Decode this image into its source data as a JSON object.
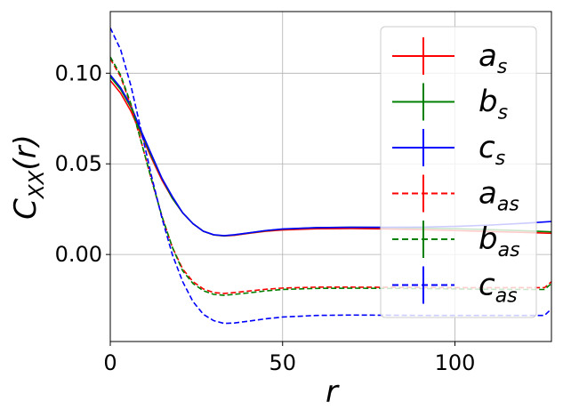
{
  "chart_data": {
    "type": "line",
    "xlabel": "r",
    "ylabel_main": "C",
    "ylabel_sub": "XX",
    "ylabel_tail": "(r)",
    "xlim": [
      0,
      128
    ],
    "ylim": [
      -0.048,
      0.134
    ],
    "xticks": [
      0,
      50,
      100
    ],
    "xtick_labels": [
      "0",
      "50",
      "100"
    ],
    "yticks": [
      0.1,
      0.05,
      0.0
    ],
    "ytick_labels": [
      "0.10",
      "0.05",
      "0.00"
    ],
    "grid": true,
    "legend_position": "top-right",
    "series": [
      {
        "name": "a",
        "sub": "s",
        "color": "#ff0000",
        "style": "solid",
        "points": [
          [
            0,
            0.096
          ],
          [
            3,
            0.089
          ],
          [
            6,
            0.079
          ],
          [
            9,
            0.066
          ],
          [
            12,
            0.053
          ],
          [
            15,
            0.041
          ],
          [
            18,
            0.031
          ],
          [
            21,
            0.023
          ],
          [
            24,
            0.017
          ],
          [
            27,
            0.0128
          ],
          [
            30,
            0.0108
          ],
          [
            33,
            0.0102
          ],
          [
            36,
            0.0106
          ],
          [
            40,
            0.0116
          ],
          [
            45,
            0.0128
          ],
          [
            50,
            0.0135
          ],
          [
            60,
            0.0142
          ],
          [
            70,
            0.0143
          ],
          [
            80,
            0.0141
          ],
          [
            90,
            0.0137
          ],
          [
            100,
            0.0132
          ],
          [
            110,
            0.0127
          ],
          [
            120,
            0.0122
          ],
          [
            128,
            0.0117
          ]
        ]
      },
      {
        "name": "b",
        "sub": "s",
        "color": "#008000",
        "style": "solid",
        "points": [
          [
            0,
            0.098
          ],
          [
            3,
            0.091
          ],
          [
            6,
            0.081
          ],
          [
            9,
            0.067
          ],
          [
            12,
            0.054
          ],
          [
            15,
            0.042
          ],
          [
            18,
            0.031
          ],
          [
            21,
            0.023
          ],
          [
            24,
            0.017
          ],
          [
            27,
            0.0128
          ],
          [
            30,
            0.0108
          ],
          [
            33,
            0.0103
          ],
          [
            36,
            0.0108
          ],
          [
            40,
            0.0118
          ],
          [
            45,
            0.0131
          ],
          [
            50,
            0.014
          ],
          [
            60,
            0.0148
          ],
          [
            70,
            0.015
          ],
          [
            80,
            0.0149
          ],
          [
            90,
            0.0146
          ],
          [
            100,
            0.0142
          ],
          [
            110,
            0.0137
          ],
          [
            120,
            0.0131
          ],
          [
            128,
            0.0125
          ]
        ]
      },
      {
        "name": "c",
        "sub": "s",
        "color": "#0000ff",
        "style": "solid",
        "points": [
          [
            0,
            0.099
          ],
          [
            3,
            0.092
          ],
          [
            6,
            0.082
          ],
          [
            9,
            0.068
          ],
          [
            12,
            0.055
          ],
          [
            15,
            0.042
          ],
          [
            18,
            0.032
          ],
          [
            21,
            0.023
          ],
          [
            24,
            0.017
          ],
          [
            27,
            0.0128
          ],
          [
            30,
            0.0109
          ],
          [
            33,
            0.0104
          ],
          [
            36,
            0.0109
          ],
          [
            40,
            0.0119
          ],
          [
            45,
            0.0132
          ],
          [
            50,
            0.0141
          ],
          [
            60,
            0.0148
          ],
          [
            70,
            0.015
          ],
          [
            80,
            0.015
          ],
          [
            90,
            0.0151
          ],
          [
            100,
            0.0155
          ],
          [
            110,
            0.0162
          ],
          [
            120,
            0.0172
          ],
          [
            128,
            0.0182
          ]
        ]
      },
      {
        "name": "a",
        "sub": "as",
        "color": "#ff0000",
        "style": "dashed",
        "points": [
          [
            0,
            0.108
          ],
          [
            3,
            0.098
          ],
          [
            6,
            0.082
          ],
          [
            9,
            0.062
          ],
          [
            12,
            0.041
          ],
          [
            15,
            0.021
          ],
          [
            18,
            0.004
          ],
          [
            21,
            -0.008
          ],
          [
            24,
            -0.015
          ],
          [
            27,
            -0.019
          ],
          [
            30,
            -0.021
          ],
          [
            33,
            -0.0215
          ],
          [
            36,
            -0.021
          ],
          [
            40,
            -0.0202
          ],
          [
            45,
            -0.0192
          ],
          [
            50,
            -0.0185
          ],
          [
            60,
            -0.018
          ],
          [
            70,
            -0.018
          ],
          [
            80,
            -0.0181
          ],
          [
            90,
            -0.0182
          ],
          [
            100,
            -0.0183
          ],
          [
            110,
            -0.0183
          ],
          [
            120,
            -0.0183
          ],
          [
            126,
            -0.0183
          ],
          [
            128,
            -0.015
          ]
        ]
      },
      {
        "name": "b",
        "sub": "as",
        "color": "#008000",
        "style": "dashed",
        "points": [
          [
            0,
            0.109
          ],
          [
            3,
            0.099
          ],
          [
            6,
            0.083
          ],
          [
            9,
            0.062
          ],
          [
            12,
            0.041
          ],
          [
            15,
            0.021
          ],
          [
            18,
            0.004
          ],
          [
            21,
            -0.009
          ],
          [
            24,
            -0.016
          ],
          [
            27,
            -0.02
          ],
          [
            30,
            -0.022
          ],
          [
            33,
            -0.0225
          ],
          [
            36,
            -0.022
          ],
          [
            40,
            -0.0212
          ],
          [
            45,
            -0.0201
          ],
          [
            50,
            -0.0193
          ],
          [
            60,
            -0.0187
          ],
          [
            70,
            -0.0186
          ],
          [
            80,
            -0.0187
          ],
          [
            90,
            -0.0188
          ],
          [
            100,
            -0.019
          ],
          [
            110,
            -0.0192
          ],
          [
            120,
            -0.0193
          ],
          [
            126,
            -0.0193
          ],
          [
            128,
            -0.016
          ]
        ]
      },
      {
        "name": "c",
        "sub": "as",
        "color": "#0000ff",
        "style": "dashed",
        "points": [
          [
            0,
            0.125
          ],
          [
            3,
            0.113
          ],
          [
            6,
            0.093
          ],
          [
            9,
            0.068
          ],
          [
            12,
            0.043
          ],
          [
            15,
            0.02
          ],
          [
            18,
            0.0
          ],
          [
            21,
            -0.015
          ],
          [
            24,
            -0.026
          ],
          [
            27,
            -0.033
          ],
          [
            30,
            -0.0365
          ],
          [
            33,
            -0.038
          ],
          [
            36,
            -0.0378
          ],
          [
            40,
            -0.0368
          ],
          [
            45,
            -0.0355
          ],
          [
            50,
            -0.0345
          ],
          [
            60,
            -0.0336
          ],
          [
            70,
            -0.0334
          ],
          [
            80,
            -0.0335
          ],
          [
            90,
            -0.0336
          ],
          [
            100,
            -0.0336
          ],
          [
            110,
            -0.0336
          ],
          [
            120,
            -0.0336
          ],
          [
            126,
            -0.0336
          ],
          [
            128,
            -0.03
          ]
        ]
      }
    ]
  }
}
